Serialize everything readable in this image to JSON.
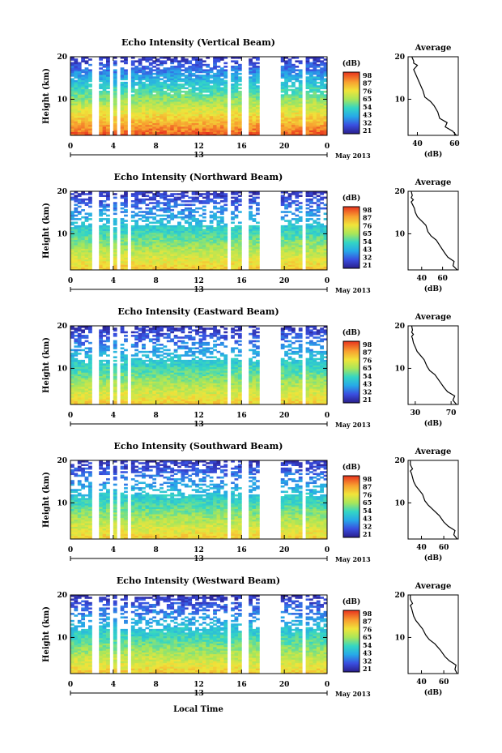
{
  "figure": {
    "x_axis_label": "Local Time",
    "date_label": "13",
    "month_label": "May 2013",
    "height_axis_label": "Height (km)",
    "colorbar_unit": "(dB)",
    "average_title": "Average",
    "average_xlabel": "(dB)"
  },
  "chart_data": [
    {
      "type": "heatmap",
      "title": "Echo Intensity (Vertical Beam)",
      "xlabel": "",
      "ylabel": "Height (km)",
      "x_ticks": [
        "0",
        "4",
        "8",
        "12",
        "16",
        "20",
        "0"
      ],
      "y_ticks": [
        "20",
        "10"
      ],
      "x_range_hours": [
        0,
        24
      ],
      "y_range_km": [
        1.5,
        20
      ],
      "data_gaps_hours": [
        [
          2.0,
          2.5
        ],
        [
          3.8,
          4.1
        ],
        [
          4.5,
          4.8
        ],
        [
          5.2,
          5.6
        ],
        [
          14.6,
          15.0
        ],
        [
          16.0,
          16.5
        ],
        [
          17.7,
          19.5
        ],
        [
          21.6,
          22.0
        ]
      ],
      "colorbar": {
        "unit": "(dB)",
        "ticks": [
          "98",
          "87",
          "76",
          "65",
          "54",
          "43",
          "32",
          "21"
        ],
        "range": [
          21,
          98
        ]
      },
      "average": {
        "xticks": [
          "40",
          "60"
        ],
        "xrange": [
          35,
          62
        ],
        "yticks": [
          "20",
          "10"
        ],
        "profile": [
          [
            61,
            1.5
          ],
          [
            59,
            2.5
          ],
          [
            55,
            3.5
          ],
          [
            56,
            4.5
          ],
          [
            52,
            5.5
          ],
          [
            51,
            7
          ],
          [
            49,
            8.5
          ],
          [
            47,
            9.5
          ],
          [
            44,
            10.5
          ],
          [
            43,
            12
          ],
          [
            42,
            13
          ],
          [
            41,
            14
          ],
          [
            40,
            15
          ],
          [
            39,
            16
          ],
          [
            38,
            17
          ],
          [
            39,
            17.5
          ],
          [
            40,
            18
          ],
          [
            38,
            18.5
          ],
          [
            38,
            19
          ],
          [
            37,
            20
          ]
        ]
      }
    },
    {
      "type": "heatmap",
      "title": "Echo Intensity (Northward Beam)",
      "xlabel": "",
      "ylabel": "Height (km)",
      "x_ticks": [
        "0",
        "4",
        "8",
        "12",
        "16",
        "20",
        "0"
      ],
      "y_ticks": [
        "20",
        "10"
      ],
      "x_range_hours": [
        0,
        24
      ],
      "y_range_km": [
        1.5,
        20
      ],
      "data_gaps_hours": [
        [
          2.0,
          2.5
        ],
        [
          3.8,
          4.1
        ],
        [
          4.5,
          4.8
        ],
        [
          5.2,
          5.6
        ],
        [
          14.6,
          15.0
        ],
        [
          16.0,
          16.5
        ],
        [
          17.7,
          19.5
        ],
        [
          21.6,
          22.0
        ]
      ],
      "colorbar": {
        "unit": "(dB)",
        "ticks": [
          "98",
          "87",
          "76",
          "65",
          "54",
          "43",
          "32",
          "21"
        ],
        "range": [
          21,
          98
        ]
      },
      "average": {
        "xticks": [
          "40",
          "60"
        ],
        "xrange": [
          27,
          75
        ],
        "yticks": [
          "20",
          "10"
        ],
        "profile": [
          [
            74,
            1.5
          ],
          [
            70,
            2.5
          ],
          [
            71,
            3.5
          ],
          [
            65,
            4.5
          ],
          [
            62,
            5.5
          ],
          [
            58,
            7
          ],
          [
            54,
            8.5
          ],
          [
            49,
            9.5
          ],
          [
            46,
            10.5
          ],
          [
            44,
            12
          ],
          [
            40,
            13
          ],
          [
            36,
            14
          ],
          [
            34,
            15
          ],
          [
            33,
            16
          ],
          [
            31,
            17
          ],
          [
            30,
            17.5
          ],
          [
            32,
            18
          ],
          [
            30,
            18.5
          ],
          [
            31,
            19
          ],
          [
            30,
            20
          ]
        ]
      }
    },
    {
      "type": "heatmap",
      "title": "Echo Intensity (Eastward Beam)",
      "xlabel": "",
      "ylabel": "Height (km)",
      "x_ticks": [
        "0",
        "4",
        "8",
        "12",
        "16",
        "20",
        "0"
      ],
      "y_ticks": [
        "20",
        "10"
      ],
      "x_range_hours": [
        0,
        24
      ],
      "y_range_km": [
        1.5,
        20
      ],
      "data_gaps_hours": [
        [
          2.0,
          2.5
        ],
        [
          3.8,
          4.1
        ],
        [
          4.5,
          4.8
        ],
        [
          5.2,
          5.6
        ],
        [
          14.6,
          15.0
        ],
        [
          16.0,
          16.5
        ],
        [
          17.7,
          19.5
        ],
        [
          21.6,
          22.0
        ]
      ],
      "colorbar": {
        "unit": "(dB)",
        "ticks": [
          "98",
          "87",
          "76",
          "65",
          "54",
          "43",
          "32",
          "21"
        ],
        "range": [
          21,
          98
        ]
      },
      "average": {
        "xticks": [
          "30",
          "70"
        ],
        "xrange": [
          22,
          78
        ],
        "yticks": [
          "20",
          "10"
        ],
        "profile": [
          [
            76,
            1.5
          ],
          [
            72,
            2.5
          ],
          [
            74,
            3.5
          ],
          [
            66,
            4.5
          ],
          [
            62,
            5.5
          ],
          [
            57,
            7
          ],
          [
            52,
            8.5
          ],
          [
            46,
            9.5
          ],
          [
            43,
            10.5
          ],
          [
            40,
            12
          ],
          [
            36,
            13
          ],
          [
            32,
            14
          ],
          [
            30,
            15
          ],
          [
            28,
            16
          ],
          [
            27,
            17
          ],
          [
            26,
            17.5
          ],
          [
            28,
            18
          ],
          [
            26,
            18.5
          ],
          [
            27,
            19
          ],
          [
            26,
            20
          ]
        ]
      }
    },
    {
      "type": "heatmap",
      "title": "Echo Intensity (Southward Beam)",
      "xlabel": "",
      "ylabel": "Height (km)",
      "x_ticks": [
        "0",
        "4",
        "8",
        "12",
        "16",
        "20",
        "0"
      ],
      "y_ticks": [
        "20",
        "10"
      ],
      "x_range_hours": [
        0,
        24
      ],
      "y_range_km": [
        1.5,
        20
      ],
      "data_gaps_hours": [
        [
          2.0,
          2.5
        ],
        [
          3.8,
          4.1
        ],
        [
          4.5,
          4.8
        ],
        [
          5.2,
          5.6
        ],
        [
          14.6,
          15.0
        ],
        [
          16.0,
          16.5
        ],
        [
          17.7,
          19.5
        ],
        [
          21.6,
          22.0
        ]
      ],
      "colorbar": {
        "unit": "(dB)",
        "ticks": [
          "98",
          "87",
          "76",
          "65",
          "54",
          "43",
          "32",
          "21"
        ],
        "range": [
          21,
          98
        ]
      },
      "average": {
        "xticks": [
          "40",
          "60"
        ],
        "xrange": [
          28,
          73
        ],
        "yticks": [
          "20",
          "10"
        ],
        "profile": [
          [
            72,
            1.5
          ],
          [
            69,
            2.5
          ],
          [
            70,
            3.5
          ],
          [
            64,
            4.5
          ],
          [
            60,
            5.5
          ],
          [
            56,
            7
          ],
          [
            50,
            8.5
          ],
          [
            46,
            9.5
          ],
          [
            43,
            10.5
          ],
          [
            41,
            12
          ],
          [
            38,
            13
          ],
          [
            35,
            14
          ],
          [
            33,
            15
          ],
          [
            32,
            16
          ],
          [
            31,
            17
          ],
          [
            30,
            17.5
          ],
          [
            32,
            18
          ],
          [
            31,
            18.5
          ],
          [
            30,
            19
          ],
          [
            30,
            20
          ]
        ]
      }
    },
    {
      "type": "heatmap",
      "title": "Echo Intensity (Westward Beam)",
      "xlabel": "Local Time",
      "ylabel": "Height (km)",
      "x_ticks": [
        "0",
        "4",
        "8",
        "12",
        "16",
        "20",
        "0"
      ],
      "y_ticks": [
        "20",
        "10"
      ],
      "x_range_hours": [
        0,
        24
      ],
      "y_range_km": [
        1.5,
        20
      ],
      "data_gaps_hours": [
        [
          2.0,
          2.5
        ],
        [
          3.8,
          4.1
        ],
        [
          4.5,
          4.8
        ],
        [
          5.2,
          5.6
        ],
        [
          14.6,
          15.0
        ],
        [
          16.0,
          16.5
        ],
        [
          17.7,
          19.5
        ],
        [
          21.6,
          22.0
        ]
      ],
      "colorbar": {
        "unit": "(dB)",
        "ticks": [
          "98",
          "87",
          "76",
          "65",
          "54",
          "43",
          "32",
          "21"
        ],
        "range": [
          21,
          98
        ]
      },
      "average": {
        "xticks": [
          "40",
          "60"
        ],
        "xrange": [
          28,
          73
        ],
        "yticks": [
          "20",
          "10"
        ],
        "profile": [
          [
            72,
            1.5
          ],
          [
            70,
            2.5
          ],
          [
            71,
            3.5
          ],
          [
            65,
            4.5
          ],
          [
            61,
            5.5
          ],
          [
            57,
            7
          ],
          [
            52,
            8.5
          ],
          [
            47,
            9.5
          ],
          [
            44,
            10.5
          ],
          [
            41,
            12
          ],
          [
            38,
            13
          ],
          [
            35,
            14
          ],
          [
            33,
            15
          ],
          [
            32,
            16
          ],
          [
            31,
            17
          ],
          [
            30,
            17.5
          ],
          [
            32,
            18
          ],
          [
            31,
            18.5
          ],
          [
            30,
            19
          ],
          [
            30,
            20
          ]
        ]
      }
    }
  ]
}
